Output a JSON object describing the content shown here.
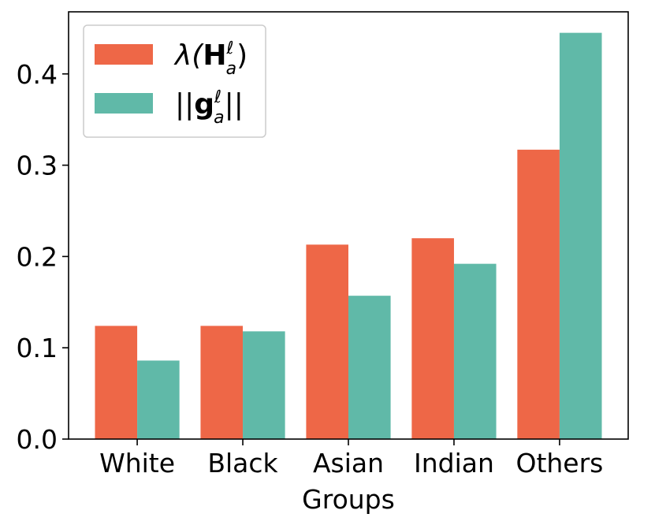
{
  "chart_data": {
    "type": "bar",
    "categories": [
      "White",
      "Black",
      "Asian",
      "Indian",
      "Others"
    ],
    "series": [
      {
        "name": "λ(H_a^ℓ)",
        "color": "#ee6747",
        "values": [
          0.124,
          0.124,
          0.213,
          0.22,
          0.317
        ]
      },
      {
        "name": "||g_a^ℓ||",
        "color": "#60b9a8",
        "values": [
          0.086,
          0.118,
          0.157,
          0.192,
          0.445
        ]
      }
    ],
    "xlabel": "Groups",
    "ylabel": "",
    "ylim": [
      0,
      0.468
    ],
    "yticks": [
      0.0,
      0.1,
      0.2,
      0.3,
      0.4
    ],
    "ytick_labels": [
      "0.0",
      "0.1",
      "0.2",
      "0.3",
      "0.4"
    ],
    "legend": {
      "position": "upper-left",
      "entries": [
        {
          "base": "λ(",
          "main": "H",
          "sup": "ℓ",
          "sub": "a",
          "tail": ")"
        },
        {
          "base": "||",
          "main": "g",
          "sup": "ℓ",
          "sub": "a",
          "tail": "||"
        }
      ]
    },
    "grid": false
  }
}
